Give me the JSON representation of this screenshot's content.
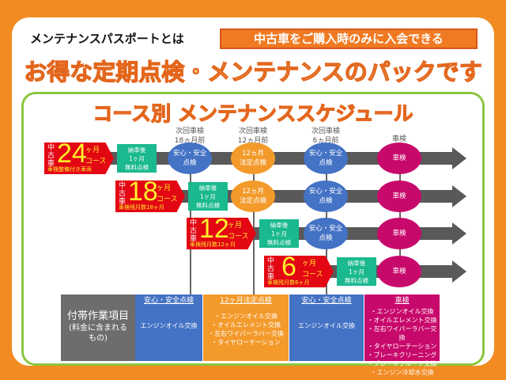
{
  "intro": "メンテナンスパスポートとは",
  "badge": "中古車をご購入時のみに入会できる",
  "headline": "お得な定期点検・メンテナンスのパックです",
  "schedule_title": "コース別 メンテナンススケジュール",
  "columns": [
    {
      "line1": "次回車検",
      "line2": "18ヵ月前"
    },
    {
      "line1": "次回車検",
      "line2": "12ヵ月前"
    },
    {
      "line1": "次回車検",
      "line2": "6ヵ月前"
    },
    {
      "line1": "車検",
      "line2": ""
    }
  ],
  "courses": [
    {
      "prefix": "中古車",
      "months": "24",
      "unit": "ヶ月",
      "course": "コース",
      "sub": "車検整備付き車両"
    },
    {
      "prefix": "中古車",
      "months": "18",
      "unit": "ヶ月",
      "course": "コース",
      "sub": "車検残月数18ヶ月"
    },
    {
      "prefix": "中古車",
      "months": "12",
      "unit": "ヶ月",
      "course": "コース",
      "sub": "車検残月数12ヶ月"
    },
    {
      "prefix": "中古車",
      "months": "6",
      "unit": "ヶ月",
      "course": "コース",
      "sub": "車検残月数6ヶ月"
    }
  ],
  "free_check": "納車後\n1ヶ月\n無料点検",
  "events": {
    "safety": "安心・安全\n点検",
    "legal": "12ヵ月\n法定点検",
    "shaken": "車検"
  },
  "table": {
    "label": "付帯作業項目",
    "label_sub": "(料金に含まれる\nもの)",
    "cols": [
      {
        "header": "安心・安全点検",
        "items": "エンジンオイル交換"
      },
      {
        "header": "12ヶ月法定点検",
        "items": "・エンジンオイル交換\n・オイルエレメント交換\n・左右ワイパーラバー交換\n・タイヤローテーション"
      },
      {
        "header": "安心・安全点検",
        "items": "エンジンオイル交換"
      },
      {
        "header": "車検",
        "items": "・エンジンオイル交換\n・オイルエレメント交換\n・左右ワイパーラバー交換\n・タイヤローテーション\n・ブレーキクリーニング\n・ブレーキフルード交換\n・エンジン冷却水交換"
      }
    ]
  },
  "colors": {
    "orange": "#f28b22",
    "red": "#e30613",
    "blue": "#4472c4",
    "legal": "#f39a2b",
    "shaken": "#c8096c",
    "free": "#1bb98f",
    "green_border": "#8cc63f"
  }
}
